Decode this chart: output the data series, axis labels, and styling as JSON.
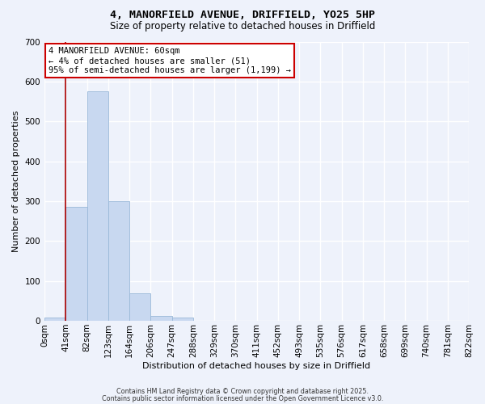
{
  "title": "4, MANORFIELD AVENUE, DRIFFIELD, YO25 5HP",
  "subtitle": "Size of property relative to detached houses in Driffield",
  "xlabel": "Distribution of detached houses by size in Driffield",
  "ylabel": "Number of detached properties",
  "bin_labels": [
    "0sqm",
    "41sqm",
    "82sqm",
    "123sqm",
    "164sqm",
    "206sqm",
    "247sqm",
    "288sqm",
    "329sqm",
    "370sqm",
    "411sqm",
    "452sqm",
    "493sqm",
    "535sqm",
    "576sqm",
    "617sqm",
    "658sqm",
    "699sqm",
    "740sqm",
    "781sqm",
    "822sqm"
  ],
  "bar_values": [
    8,
    285,
    575,
    300,
    68,
    12,
    8,
    0,
    0,
    0,
    0,
    0,
    0,
    0,
    0,
    0,
    0,
    0,
    0,
    0
  ],
  "bar_color": "#c8d8f0",
  "bar_edge_color": "#9ab8d8",
  "ylim": [
    0,
    700
  ],
  "yticks": [
    0,
    100,
    200,
    300,
    400,
    500,
    600,
    700
  ],
  "property_line_x": 1.0,
  "property_line_color": "#aa0000",
  "annotation_title": "4 MANORFIELD AVENUE: 60sqm",
  "annotation_line1": "← 4% of detached houses are smaller (51)",
  "annotation_line2": "95% of semi-detached houses are larger (1,199) →",
  "annotation_box_color": "#ffffff",
  "annotation_box_edge": "#cc0000",
  "bg_color": "#eef2fb",
  "grid_color": "#ffffff",
  "footer1": "Contains HM Land Registry data © Crown copyright and database right 2025.",
  "footer2": "Contains public sector information licensed under the Open Government Licence v3.0."
}
